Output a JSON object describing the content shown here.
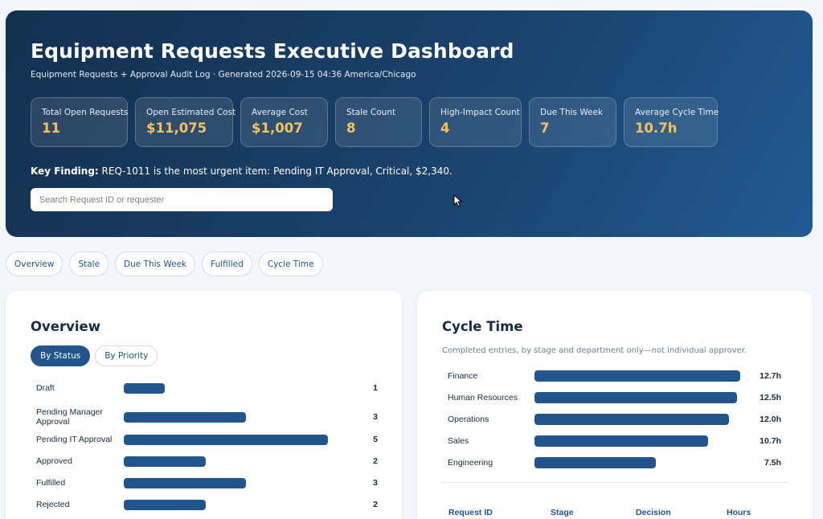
{
  "header": {
    "title": "Equipment Requests Executive Dashboard",
    "subtitle": "Equipment Requests + Approval Audit Log · Generated 2026-09-15 04:36 America/Chicago",
    "kpis": [
      {
        "label": "Total Open Requests",
        "value": "11"
      },
      {
        "label": "Open Estimated Cost",
        "value": "$11,075"
      },
      {
        "label": "Average Cost",
        "value": "$1,007"
      },
      {
        "label": "Stale Count",
        "value": "8"
      },
      {
        "label": "High-Impact Count",
        "value": "4"
      },
      {
        "label": "Due This Week",
        "value": "7"
      },
      {
        "label": "Average Cycle Time",
        "value": "10.7h"
      }
    ],
    "finding_label": "Key Finding:",
    "finding_text": "REQ-1011 is the most urgent item: Pending IT Approval, Critical, $2,340.",
    "search_placeholder": "Search Request ID or requester",
    "search_value": ""
  },
  "tabs": [
    {
      "label": "Overview"
    },
    {
      "label": "Stale"
    },
    {
      "label": "Due This Week"
    },
    {
      "label": "Fulfilled"
    },
    {
      "label": "Cycle Time"
    }
  ],
  "overview": {
    "title": "Overview",
    "toggle": [
      {
        "label": "By Status",
        "active": true
      },
      {
        "label": "By Priority",
        "active": false
      }
    ],
    "max": 5,
    "rows": [
      {
        "label": "Draft",
        "value": 1
      },
      {
        "label": "Pending Manager Approval",
        "value": 3
      },
      {
        "label": "Pending IT Approval",
        "value": 5
      },
      {
        "label": "Approved",
        "value": 2
      },
      {
        "label": "Fulfilled",
        "value": 3
      },
      {
        "label": "Rejected",
        "value": 2
      }
    ]
  },
  "cycle": {
    "title": "Cycle Time",
    "subtitle": "Completed entries, by stage and department only—not individual approver.",
    "max": 12.7,
    "rows": [
      {
        "label": "Finance",
        "value": 12.7,
        "display": "12.7h"
      },
      {
        "label": "Human Resources",
        "value": 12.5,
        "display": "12.5h"
      },
      {
        "label": "Operations",
        "value": 12.0,
        "display": "12.0h"
      },
      {
        "label": "Sales",
        "value": 10.7,
        "display": "10.7h"
      },
      {
        "label": "Engineering",
        "value": 7.5,
        "display": "7.5h"
      }
    ],
    "table_headers": [
      "Request ID",
      "Stage",
      "Decision",
      "Hours"
    ]
  },
  "colors": {
    "accent": "#22558c",
    "kpi_value": "#f6c25b"
  }
}
